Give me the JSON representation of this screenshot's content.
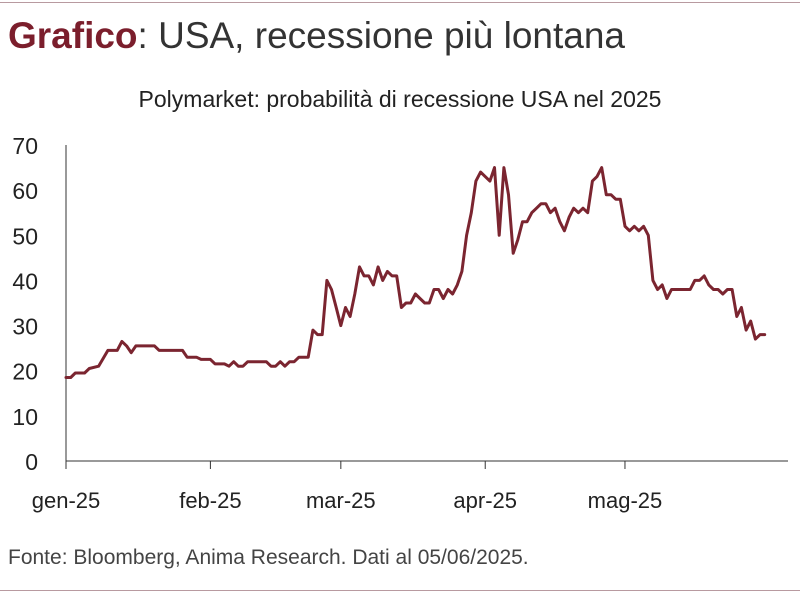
{
  "header": {
    "lead": "Grafico",
    "separator": ":",
    "rest": " USA, recessione più lontana"
  },
  "footer": {
    "source": "Fonte: Bloomberg, Anima Research. Dati al 05/06/2025."
  },
  "colors": {
    "line": "#7b2530",
    "accent": "#7b1e2c",
    "axis": "#333333"
  },
  "chart_data": {
    "type": "line",
    "title": "Polymarket: probabilità di recessione USA nel 2025",
    "xlabel": "",
    "ylabel": "",
    "ylim": [
      0,
      70
    ],
    "yticks": [
      0,
      10,
      20,
      30,
      40,
      50,
      60,
      70
    ],
    "grid": false,
    "legend": "none",
    "x_tick_labels": [
      {
        "label": "gen-25",
        "date": "2025-01-01"
      },
      {
        "label": "feb-25",
        "date": "2025-02-01"
      },
      {
        "label": "mar-25",
        "date": "2025-03-01"
      },
      {
        "label": "apr-25",
        "date": "2025-04-01"
      },
      {
        "label": "mag-25",
        "date": "2025-05-01"
      }
    ],
    "xlim": [
      "2025-01-01",
      "2025-06-05"
    ],
    "series": [
      {
        "values": [
          [
            "2025-01-01",
            18.5
          ],
          [
            "2025-01-02",
            18.5
          ],
          [
            "2025-01-03",
            19.5
          ],
          [
            "2025-01-05",
            19.5
          ],
          [
            "2025-01-06",
            20.5
          ],
          [
            "2025-01-08",
            21
          ],
          [
            "2025-01-10",
            24.5
          ],
          [
            "2025-01-12",
            24.5
          ],
          [
            "2025-01-13",
            26.5
          ],
          [
            "2025-01-14",
            25.5
          ],
          [
            "2025-01-15",
            24
          ],
          [
            "2025-01-16",
            25.5
          ],
          [
            "2025-01-20",
            25.5
          ],
          [
            "2025-01-21",
            24.5
          ],
          [
            "2025-01-26",
            24.5
          ],
          [
            "2025-01-27",
            23
          ],
          [
            "2025-01-29",
            23
          ],
          [
            "2025-01-30",
            22.5
          ],
          [
            "2025-02-01",
            22.5
          ],
          [
            "2025-02-02",
            21.5
          ],
          [
            "2025-02-04",
            21.5
          ],
          [
            "2025-02-05",
            21
          ],
          [
            "2025-02-06",
            22
          ],
          [
            "2025-02-07",
            21
          ],
          [
            "2025-02-08",
            21
          ],
          [
            "2025-02-09",
            22
          ],
          [
            "2025-02-13",
            22
          ],
          [
            "2025-02-14",
            21
          ],
          [
            "2025-02-15",
            21
          ],
          [
            "2025-02-16",
            22
          ],
          [
            "2025-02-17",
            21
          ],
          [
            "2025-02-18",
            22
          ],
          [
            "2025-02-19",
            22
          ],
          [
            "2025-02-20",
            23
          ],
          [
            "2025-02-22",
            23
          ],
          [
            "2025-02-23",
            29
          ],
          [
            "2025-02-24",
            28
          ],
          [
            "2025-02-25",
            28
          ],
          [
            "2025-02-26",
            40
          ],
          [
            "2025-02-27",
            38
          ],
          [
            "2025-02-28",
            34
          ],
          [
            "2025-03-01",
            30
          ],
          [
            "2025-03-02",
            34
          ],
          [
            "2025-03-03",
            32
          ],
          [
            "2025-03-04",
            37
          ],
          [
            "2025-03-05",
            43
          ],
          [
            "2025-03-06",
            41
          ],
          [
            "2025-03-07",
            41
          ],
          [
            "2025-03-08",
            39
          ],
          [
            "2025-03-09",
            43
          ],
          [
            "2025-03-10",
            40
          ],
          [
            "2025-03-11",
            42
          ],
          [
            "2025-03-12",
            41
          ],
          [
            "2025-03-13",
            41
          ],
          [
            "2025-03-14",
            34
          ],
          [
            "2025-03-15",
            35
          ],
          [
            "2025-03-16",
            35
          ],
          [
            "2025-03-17",
            37
          ],
          [
            "2025-03-18",
            36
          ],
          [
            "2025-03-19",
            35
          ],
          [
            "2025-03-20",
            35
          ],
          [
            "2025-03-21",
            38
          ],
          [
            "2025-03-22",
            38
          ],
          [
            "2025-03-23",
            36
          ],
          [
            "2025-03-24",
            38
          ],
          [
            "2025-03-25",
            37
          ],
          [
            "2025-03-26",
            39
          ],
          [
            "2025-03-27",
            42
          ],
          [
            "2025-03-28",
            50
          ],
          [
            "2025-03-29",
            55
          ],
          [
            "2025-03-30",
            62
          ],
          [
            "2025-03-31",
            64
          ],
          [
            "2025-04-01",
            63
          ],
          [
            "2025-04-02",
            62
          ],
          [
            "2025-04-03",
            65
          ],
          [
            "2025-04-04",
            50
          ],
          [
            "2025-04-05",
            65
          ],
          [
            "2025-04-06",
            59
          ],
          [
            "2025-04-07",
            46
          ],
          [
            "2025-04-08",
            49
          ],
          [
            "2025-04-09",
            53
          ],
          [
            "2025-04-10",
            53
          ],
          [
            "2025-04-11",
            55
          ],
          [
            "2025-04-12",
            56
          ],
          [
            "2025-04-13",
            57
          ],
          [
            "2025-04-14",
            57
          ],
          [
            "2025-04-15",
            55
          ],
          [
            "2025-04-16",
            56
          ],
          [
            "2025-04-17",
            53
          ],
          [
            "2025-04-18",
            51
          ],
          [
            "2025-04-19",
            54
          ],
          [
            "2025-04-20",
            56
          ],
          [
            "2025-04-21",
            55
          ],
          [
            "2025-04-22",
            56
          ],
          [
            "2025-04-23",
            55
          ],
          [
            "2025-04-24",
            62
          ],
          [
            "2025-04-25",
            63
          ],
          [
            "2025-04-26",
            65
          ],
          [
            "2025-04-27",
            59
          ],
          [
            "2025-04-28",
            59
          ],
          [
            "2025-04-29",
            58
          ],
          [
            "2025-04-30",
            58
          ],
          [
            "2025-05-01",
            52
          ],
          [
            "2025-05-02",
            51
          ],
          [
            "2025-05-03",
            52
          ],
          [
            "2025-05-04",
            51
          ],
          [
            "2025-05-05",
            52
          ],
          [
            "2025-05-06",
            50
          ],
          [
            "2025-05-07",
            40
          ],
          [
            "2025-05-08",
            38
          ],
          [
            "2025-05-09",
            39
          ],
          [
            "2025-05-10",
            36
          ],
          [
            "2025-05-11",
            38
          ],
          [
            "2025-05-12",
            38
          ],
          [
            "2025-05-13",
            38
          ],
          [
            "2025-05-14",
            38
          ],
          [
            "2025-05-15",
            38
          ],
          [
            "2025-05-16",
            40
          ],
          [
            "2025-05-17",
            40
          ],
          [
            "2025-05-18",
            41
          ],
          [
            "2025-05-19",
            39
          ],
          [
            "2025-05-20",
            38
          ],
          [
            "2025-05-21",
            38
          ],
          [
            "2025-05-22",
            37
          ],
          [
            "2025-05-23",
            38
          ],
          [
            "2025-05-24",
            38
          ],
          [
            "2025-05-25",
            32
          ],
          [
            "2025-05-26",
            34
          ],
          [
            "2025-05-27",
            29
          ],
          [
            "2025-05-28",
            31
          ],
          [
            "2025-05-29",
            27
          ],
          [
            "2025-05-30",
            28
          ],
          [
            "2025-05-31",
            28
          ]
        ]
      }
    ]
  }
}
